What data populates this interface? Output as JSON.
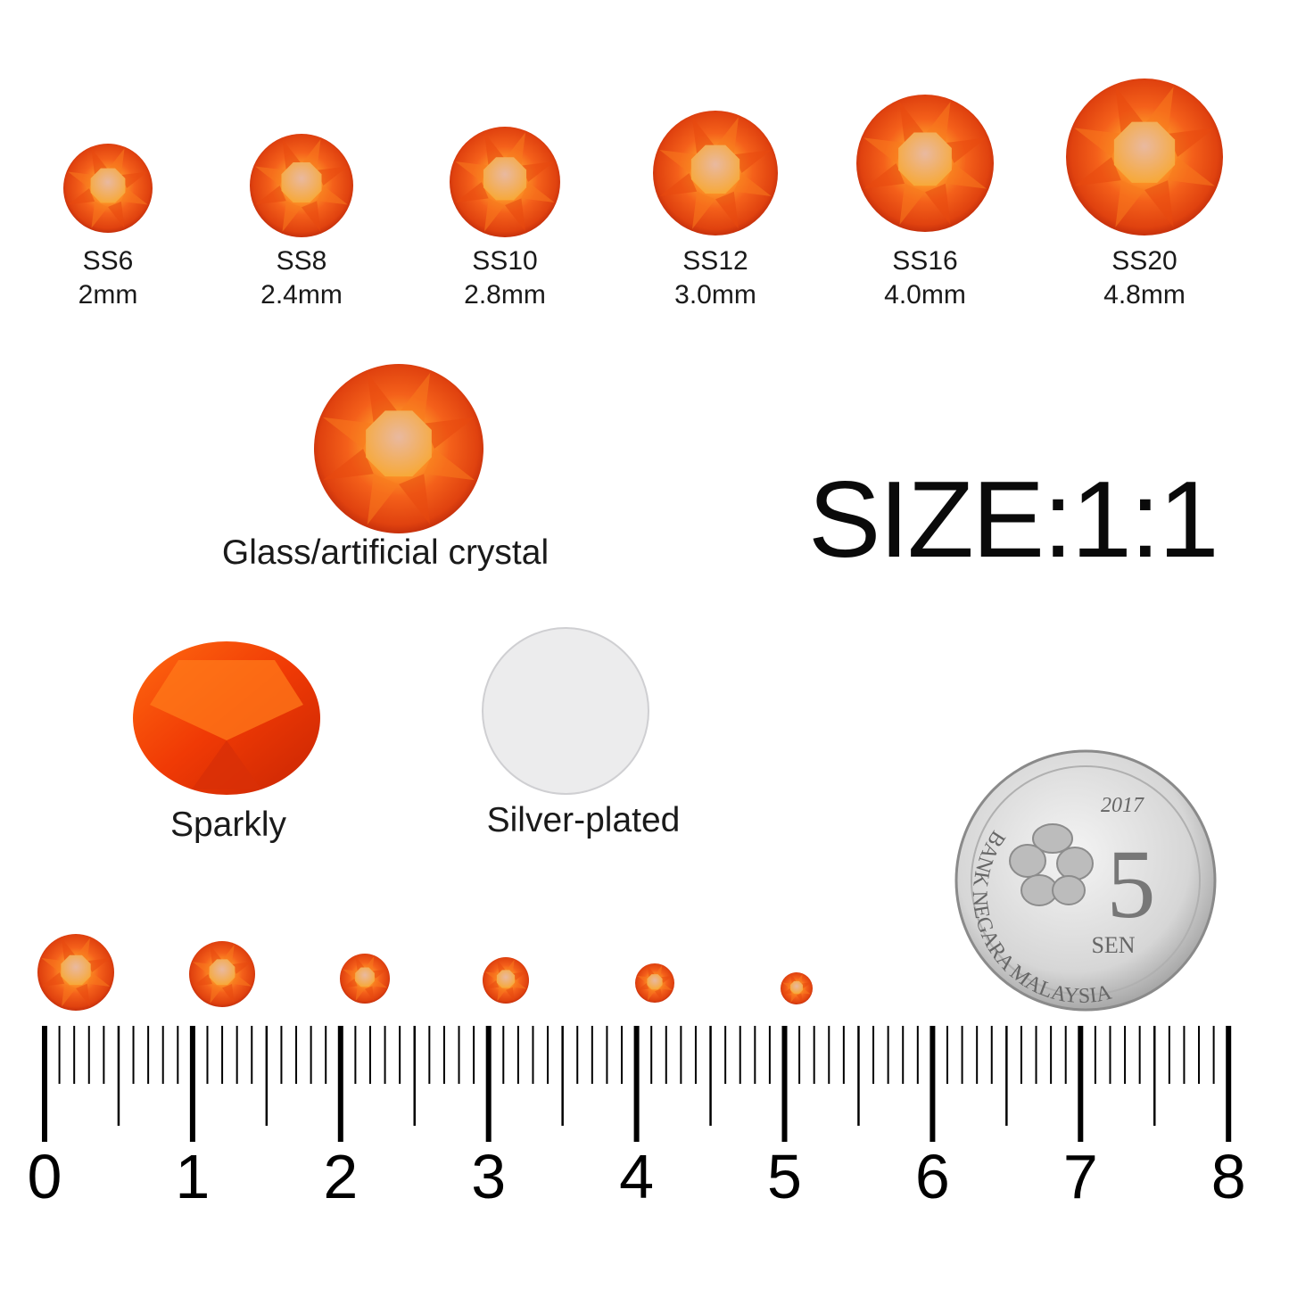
{
  "colors": {
    "gem_dark": "#c8280a",
    "gem_mid": "#f0520f",
    "gem_light": "#ffb23a",
    "silver": "#e9e9ea"
  },
  "sizes": [
    {
      "code": "SS6",
      "mm": "2mm"
    },
    {
      "code": "SS8",
      "mm": "2.4mm"
    },
    {
      "code": "SS10",
      "mm": "2.8mm"
    },
    {
      "code": "SS12",
      "mm": "3.0mm"
    },
    {
      "code": "SS16",
      "mm": "4.0mm"
    },
    {
      "code": "SS20",
      "mm": "4.8mm"
    }
  ],
  "material_label": "Glass/artificial crystal",
  "scale_label": "SIZE:1:1",
  "front_label": "Sparkly",
  "back_label": "Silver-plated",
  "coin": {
    "year": "2017",
    "value": "5",
    "unit": "SEN",
    "ring_text": "BANK NEGARA MALAYSIA"
  },
  "ruler": {
    "labels": [
      "0",
      "1",
      "2",
      "3",
      "4",
      "5",
      "6",
      "7",
      "8"
    ]
  }
}
